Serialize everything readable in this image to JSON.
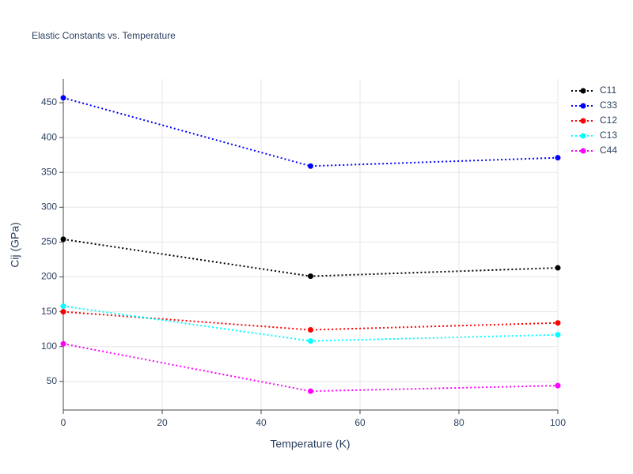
{
  "chart_data": {
    "type": "line",
    "title": "Elastic Constants vs. Temperature",
    "x_label": "Temperature (K)",
    "y_label": "Cij (GPa)",
    "x": [
      0,
      50,
      100
    ],
    "series": [
      {
        "name": "C11",
        "color": "#000000",
        "values": [
          254,
          201,
          213
        ]
      },
      {
        "name": "C33",
        "color": "#0000ff",
        "values": [
          457,
          359,
          371
        ]
      },
      {
        "name": "C12",
        "color": "#ff0000",
        "values": [
          150,
          124,
          134
        ]
      },
      {
        "name": "C13",
        "color": "#00ffff",
        "values": [
          158,
          108,
          117
        ]
      },
      {
        "name": "C44",
        "color": "#ff00ff",
        "values": [
          104,
          36,
          44
        ]
      }
    ],
    "xlim": [
      0,
      100
    ],
    "xticks": [
      0,
      20,
      40,
      60,
      80,
      100
    ],
    "ylim": [
      9,
      484
    ],
    "yticks": [
      50,
      100,
      150,
      200,
      250,
      300,
      350,
      400,
      450
    ],
    "grid": true,
    "legend": "right"
  }
}
